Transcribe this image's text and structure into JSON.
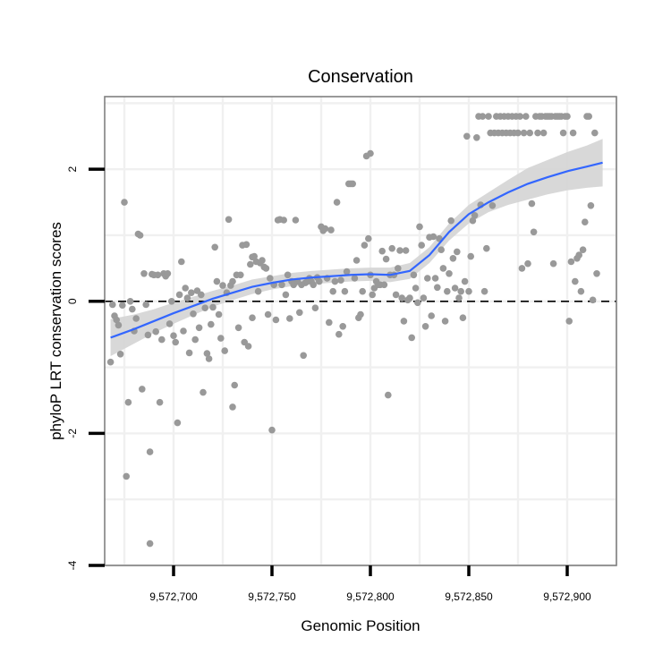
{
  "chart_data": {
    "type": "scatter",
    "title": "Conservation",
    "xlabel": "Genomic Position",
    "ylabel": "phyloP LRT conservation scores",
    "xlim": [
      9572665,
      9572925
    ],
    "ylim": [
      -4,
      3.1
    ],
    "x_ticks": [
      9572700,
      9572750,
      9572800,
      9572850,
      9572900
    ],
    "x_tick_labels": [
      "9,572,700",
      "9,572,750",
      "9,572,800",
      "9,572,850",
      "9,572,900"
    ],
    "y_ticks": [
      -4,
      -2,
      0,
      2
    ],
    "y_tick_labels": [
      "-4",
      "-2",
      "0",
      "2"
    ],
    "reference_line": {
      "y": 0,
      "style": "dashed"
    },
    "colors": {
      "points": "#999999",
      "smooth_line": "#3366FF",
      "confidence_band": "#d4d4d4",
      "grid": "#f0f0f0",
      "panel_border": "#808080",
      "reference_line": "#000000"
    },
    "smooth": {
      "x": [
        9572668,
        9572680,
        9572690,
        9572700,
        9572710,
        9572720,
        9572730,
        9572740,
        9572750,
        9572760,
        9572770,
        9572780,
        9572790,
        9572800,
        9572810,
        9572820,
        9572830,
        9572840,
        9572850,
        9572860,
        9572870,
        9572880,
        9572890,
        9572900,
        9572910,
        9572918
      ],
      "y": [
        -0.55,
        -0.42,
        -0.3,
        -0.18,
        -0.07,
        0.04,
        0.13,
        0.22,
        0.28,
        0.33,
        0.36,
        0.38,
        0.4,
        0.41,
        0.4,
        0.46,
        0.7,
        1.05,
        1.32,
        1.5,
        1.65,
        1.78,
        1.88,
        1.97,
        2.04,
        2.1
      ],
      "lower": [
        -0.83,
        -0.64,
        -0.48,
        -0.34,
        -0.21,
        -0.08,
        0.02,
        0.11,
        0.18,
        0.23,
        0.26,
        0.28,
        0.3,
        0.31,
        0.29,
        0.34,
        0.58,
        0.92,
        1.18,
        1.35,
        1.46,
        1.54,
        1.62,
        1.68,
        1.72,
        1.74
      ],
      "upper": [
        -0.27,
        -0.2,
        -0.12,
        -0.02,
        0.07,
        0.16,
        0.24,
        0.33,
        0.38,
        0.43,
        0.46,
        0.48,
        0.5,
        0.51,
        0.51,
        0.58,
        0.82,
        1.18,
        1.46,
        1.65,
        1.84,
        2.02,
        2.14,
        2.26,
        2.36,
        2.46
      ]
    },
    "points": [
      [
        9572668,
        -0.92
      ],
      [
        9572669,
        -0.05
      ],
      [
        9572670,
        -0.22
      ],
      [
        9572671,
        -0.28
      ],
      [
        9572672,
        -0.36
      ],
      [
        9572673,
        -0.8
      ],
      [
        9572674,
        -0.06
      ],
      [
        9572675,
        1.5
      ],
      [
        9572676,
        -2.65
      ],
      [
        9572677,
        -1.53
      ],
      [
        9572678,
        0.0
      ],
      [
        9572679,
        -0.12
      ],
      [
        9572680,
        -0.45
      ],
      [
        9572681,
        -0.26
      ],
      [
        9572682,
        1.02
      ],
      [
        9572683,
        1.0
      ],
      [
        9572684,
        -1.33
      ],
      [
        9572685,
        0.42
      ],
      [
        9572686,
        -0.05
      ],
      [
        9572687,
        -0.51
      ],
      [
        9572688,
        -2.28
      ],
      [
        9572688,
        -3.67
      ],
      [
        9572689,
        0.41
      ],
      [
        9572690,
        0.4
      ],
      [
        9572691,
        -0.46
      ],
      [
        9572692,
        0.4
      ],
      [
        9572693,
        -1.53
      ],
      [
        9572694,
        -0.58
      ],
      [
        9572695,
        0.42
      ],
      [
        9572696,
        0.38
      ],
      [
        9572697,
        0.42
      ],
      [
        9572698,
        -0.34
      ],
      [
        9572699,
        0.0
      ],
      [
        9572700,
        -0.52
      ],
      [
        9572701,
        -0.62
      ],
      [
        9572702,
        -1.84
      ],
      [
        9572703,
        0.1
      ],
      [
        9572704,
        0.6
      ],
      [
        9572705,
        -0.45
      ],
      [
        9572706,
        0.2
      ],
      [
        9572707,
        0.05
      ],
      [
        9572708,
        -0.78
      ],
      [
        9572709,
        0.13
      ],
      [
        9572710,
        -0.19
      ],
      [
        9572711,
        -0.58
      ],
      [
        9572712,
        0.16
      ],
      [
        9572713,
        -0.4
      ],
      [
        9572714,
        0.1
      ],
      [
        9572715,
        -1.38
      ],
      [
        9572716,
        -0.1
      ],
      [
        9572717,
        -0.79
      ],
      [
        9572718,
        -0.87
      ],
      [
        9572719,
        -0.35
      ],
      [
        9572720,
        -0.09
      ],
      [
        9572721,
        0.82
      ],
      [
        9572722,
        0.3
      ],
      [
        9572723,
        -0.2
      ],
      [
        9572724,
        -0.56
      ],
      [
        9572725,
        0.24
      ],
      [
        9572726,
        -0.75
      ],
      [
        9572727,
        0.13
      ],
      [
        9572728,
        1.24
      ],
      [
        9572729,
        0.24
      ],
      [
        9572730,
        0.3
      ],
      [
        9572730,
        -1.6
      ],
      [
        9572731,
        -1.27
      ],
      [
        9572732,
        0.4
      ],
      [
        9572733,
        -0.4
      ],
      [
        9572734,
        0.4
      ],
      [
        9572735,
        0.85
      ],
      [
        9572736,
        -0.62
      ],
      [
        9572737,
        0.86
      ],
      [
        9572738,
        -0.68
      ],
      [
        9572739,
        0.56
      ],
      [
        9572740,
        0.67
      ],
      [
        9572740,
        -0.25
      ],
      [
        9572741,
        0.68
      ],
      [
        9572742,
        0.6
      ],
      [
        9572743,
        0.15
      ],
      [
        9572744,
        0.58
      ],
      [
        9572745,
        0.62
      ],
      [
        9572746,
        0.52
      ],
      [
        9572747,
        0.5
      ],
      [
        9572748,
        -0.2
      ],
      [
        9572749,
        0.35
      ],
      [
        9572750,
        -1.95
      ],
      [
        9572751,
        0.25
      ],
      [
        9572752,
        -0.28
      ],
      [
        9572753,
        1.23
      ],
      [
        9572754,
        1.24
      ],
      [
        9572755,
        0.25
      ],
      [
        9572756,
        1.23
      ],
      [
        9572757,
        0.1
      ],
      [
        9572758,
        0.4
      ],
      [
        9572759,
        -0.26
      ],
      [
        9572760,
        0.3
      ],
      [
        9572761,
        0.25
      ],
      [
        9572762,
        1.23
      ],
      [
        9572763,
        0.3
      ],
      [
        9572764,
        -0.17
      ],
      [
        9572765,
        0.25
      ],
      [
        9572766,
        -0.82
      ],
      [
        9572767,
        0.28
      ],
      [
        9572768,
        0.3
      ],
      [
        9572769,
        0.35
      ],
      [
        9572770,
        0.3
      ],
      [
        9572771,
        0.25
      ],
      [
        9572772,
        -0.1
      ],
      [
        9572773,
        0.36
      ],
      [
        9572774,
        0.3
      ],
      [
        9572775,
        1.13
      ],
      [
        9572776,
        1.07
      ],
      [
        9572777,
        1.1
      ],
      [
        9572778,
        0.35
      ],
      [
        9572779,
        -0.32
      ],
      [
        9572780,
        1.08
      ],
      [
        9572781,
        0.15
      ],
      [
        9572782,
        0.3
      ],
      [
        9572783,
        1.5
      ],
      [
        9572784,
        -0.5
      ],
      [
        9572785,
        0.32
      ],
      [
        9572786,
        -0.38
      ],
      [
        9572787,
        0.15
      ],
      [
        9572788,
        0.45
      ],
      [
        9572789,
        1.78
      ],
      [
        9572790,
        1.78
      ],
      [
        9572791,
        1.78
      ],
      [
        9572792,
        0.35
      ],
      [
        9572793,
        0.62
      ],
      [
        9572794,
        -0.25
      ],
      [
        9572795,
        -0.2
      ],
      [
        9572796,
        0.15
      ],
      [
        9572797,
        0.85
      ],
      [
        9572798,
        2.2
      ],
      [
        9572799,
        0.95
      ],
      [
        9572800,
        2.24
      ],
      [
        9572800,
        0.4
      ],
      [
        9572801,
        0.1
      ],
      [
        9572802,
        0.2
      ],
      [
        9572803,
        0.3
      ],
      [
        9572804,
        0.25
      ],
      [
        9572805,
        0.25
      ],
      [
        9572806,
        0.76
      ],
      [
        9572807,
        0.25
      ],
      [
        9572808,
        0.64
      ],
      [
        9572809,
        -1.42
      ],
      [
        9572810,
        0.4
      ],
      [
        9572811,
        0.8
      ],
      [
        9572812,
        0.4
      ],
      [
        9572813,
        0.1
      ],
      [
        9572814,
        0.5
      ],
      [
        9572815,
        0.77
      ],
      [
        9572816,
        0.05
      ],
      [
        9572817,
        -0.3
      ],
      [
        9572818,
        0.77
      ],
      [
        9572819,
        0.02
      ],
      [
        9572820,
        0.05
      ],
      [
        9572821,
        -0.55
      ],
      [
        9572822,
        0.4
      ],
      [
        9572823,
        0.2
      ],
      [
        9572824,
        -0.02
      ],
      [
        9572825,
        1.13
      ],
      [
        9572826,
        0.85
      ],
      [
        9572827,
        0.05
      ],
      [
        9572828,
        -0.38
      ],
      [
        9572829,
        0.35
      ],
      [
        9572830,
        0.97
      ],
      [
        9572831,
        -0.22
      ],
      [
        9572832,
        0.98
      ],
      [
        9572833,
        0.35
      ],
      [
        9572834,
        0.21
      ],
      [
        9572835,
        0.95
      ],
      [
        9572836,
        0.78
      ],
      [
        9572837,
        0.5
      ],
      [
        9572838,
        -0.3
      ],
      [
        9572839,
        0.15
      ],
      [
        9572840,
        0.42
      ],
      [
        9572841,
        1.22
      ],
      [
        9572842,
        0.65
      ],
      [
        9572843,
        0.2
      ],
      [
        9572844,
        0.75
      ],
      [
        9572845,
        0.05
      ],
      [
        9572846,
        0.15
      ],
      [
        9572847,
        -0.25
      ],
      [
        9572848,
        0.3
      ],
      [
        9572849,
        2.5
      ],
      [
        9572850,
        0.15
      ],
      [
        9572851,
        0.68
      ],
      [
        9572852,
        1.22
      ],
      [
        9572853,
        1.3
      ],
      [
        9572854,
        2.48
      ],
      [
        9572855,
        2.8
      ],
      [
        9572856,
        1.46
      ],
      [
        9572857,
        2.8
      ],
      [
        9572858,
        0.15
      ],
      [
        9572859,
        0.8
      ],
      [
        9572860,
        2.8
      ],
      [
        9572861,
        2.55
      ],
      [
        9572862,
        1.45
      ],
      [
        9572863,
        2.55
      ],
      [
        9572864,
        2.8
      ],
      [
        9572865,
        2.55
      ],
      [
        9572866,
        2.8
      ],
      [
        9572867,
        2.55
      ],
      [
        9572868,
        2.8
      ],
      [
        9572869,
        2.55
      ],
      [
        9572870,
        2.8
      ],
      [
        9572871,
        2.55
      ],
      [
        9572872,
        2.8
      ],
      [
        9572873,
        2.55
      ],
      [
        9572874,
        2.8
      ],
      [
        9572875,
        2.55
      ],
      [
        9572876,
        2.8
      ],
      [
        9572877,
        0.5
      ],
      [
        9572878,
        2.55
      ],
      [
        9572879,
        2.8
      ],
      [
        9572880,
        0.57
      ],
      [
        9572881,
        2.55
      ],
      [
        9572882,
        1.48
      ],
      [
        9572883,
        1.05
      ],
      [
        9572884,
        2.8
      ],
      [
        9572885,
        2.55
      ],
      [
        9572886,
        2.8
      ],
      [
        9572887,
        2.8
      ],
      [
        9572888,
        2.55
      ],
      [
        9572889,
        2.8
      ],
      [
        9572890,
        2.8
      ],
      [
        9572891,
        2.8
      ],
      [
        9572892,
        2.8
      ],
      [
        9572893,
        0.57
      ],
      [
        9572894,
        2.8
      ],
      [
        9572895,
        2.8
      ],
      [
        9572896,
        2.8
      ],
      [
        9572897,
        2.8
      ],
      [
        9572898,
        2.55
      ],
      [
        9572899,
        2.8
      ],
      [
        9572900,
        2.8
      ],
      [
        9572901,
        -0.3
      ],
      [
        9572902,
        0.6
      ],
      [
        9572903,
        2.55
      ],
      [
        9572904,
        0.3
      ],
      [
        9572905,
        0.65
      ],
      [
        9572906,
        0.7
      ],
      [
        9572907,
        0.15
      ],
      [
        9572908,
        0.78
      ],
      [
        9572909,
        1.2
      ],
      [
        9572910,
        2.8
      ],
      [
        9572911,
        2.8
      ],
      [
        9572912,
        1.45
      ],
      [
        9572913,
        0.02
      ],
      [
        9572914,
        2.55
      ],
      [
        9572915,
        0.42
      ]
    ]
  }
}
